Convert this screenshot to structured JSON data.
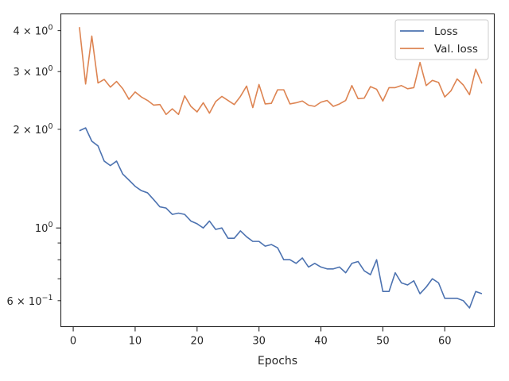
{
  "chart_data": {
    "type": "line",
    "title": "",
    "xlabel": "Epochs",
    "ylabel": "",
    "xlim": [
      -2,
      68
    ],
    "ylim": [
      0.5,
      4.5
    ],
    "yscale": "log",
    "grid": false,
    "legend_position": "top-right",
    "x_ticks": [
      0,
      10,
      20,
      30,
      40,
      50,
      60
    ],
    "x_tick_labels": [
      "0",
      "10",
      "20",
      "30",
      "40",
      "50",
      "60"
    ],
    "y_major_ticks": [
      {
        "value": 1,
        "mantissa": "",
        "base": "10",
        "exp": "0"
      }
    ],
    "y_minor_ticks": [
      {
        "value": 0.6,
        "mantissa": "6 × ",
        "base": "10",
        "exp": "−1"
      },
      {
        "value": 2,
        "mantissa": "2 × ",
        "base": "10",
        "exp": "0"
      },
      {
        "value": 3,
        "mantissa": "3 × ",
        "base": "10",
        "exp": "0"
      },
      {
        "value": 4,
        "mantissa": "4 × ",
        "base": "10",
        "exp": "0"
      }
    ],
    "y_unlabeled_ticks": [
      0.7,
      0.8,
      0.9
    ],
    "x": [
      1,
      2,
      3,
      4,
      5,
      6,
      7,
      8,
      9,
      10,
      11,
      12,
      13,
      14,
      15,
      16,
      17,
      18,
      19,
      20,
      21,
      22,
      23,
      24,
      25,
      26,
      27,
      28,
      29,
      30,
      31,
      32,
      33,
      34,
      35,
      36,
      37,
      38,
      39,
      40,
      41,
      42,
      43,
      44,
      45,
      46,
      47,
      48,
      49,
      50,
      51,
      52,
      53,
      54,
      55,
      56,
      57,
      58,
      59,
      60,
      61,
      62,
      63,
      64,
      65,
      66
    ],
    "series": [
      {
        "name": "Loss",
        "color": "#4c72b0",
        "values": [
          1.98,
          2.02,
          1.84,
          1.78,
          1.6,
          1.55,
          1.6,
          1.46,
          1.4,
          1.34,
          1.3,
          1.28,
          1.22,
          1.16,
          1.15,
          1.1,
          1.11,
          1.1,
          1.05,
          1.03,
          1.0,
          1.05,
          0.99,
          1.0,
          0.93,
          0.93,
          0.98,
          0.94,
          0.91,
          0.91,
          0.88,
          0.89,
          0.87,
          0.8,
          0.8,
          0.78,
          0.81,
          0.76,
          0.78,
          0.76,
          0.75,
          0.75,
          0.76,
          0.73,
          0.78,
          0.79,
          0.74,
          0.72,
          0.8,
          0.64,
          0.64,
          0.73,
          0.68,
          0.67,
          0.69,
          0.63,
          0.66,
          0.7,
          0.68,
          0.61,
          0.61,
          0.61,
          0.6,
          0.57,
          0.64,
          0.63
        ]
      },
      {
        "name": "Val. loss",
        "color": "#dd8452",
        "values": [
          4.1,
          2.75,
          3.85,
          2.77,
          2.84,
          2.69,
          2.8,
          2.66,
          2.47,
          2.6,
          2.51,
          2.45,
          2.37,
          2.38,
          2.22,
          2.31,
          2.22,
          2.53,
          2.35,
          2.26,
          2.41,
          2.24,
          2.43,
          2.52,
          2.45,
          2.38,
          2.52,
          2.71,
          2.33,
          2.74,
          2.39,
          2.4,
          2.64,
          2.64,
          2.39,
          2.41,
          2.44,
          2.37,
          2.35,
          2.42,
          2.45,
          2.35,
          2.39,
          2.45,
          2.72,
          2.48,
          2.49,
          2.7,
          2.65,
          2.44,
          2.68,
          2.68,
          2.72,
          2.66,
          2.68,
          3.2,
          2.72,
          2.82,
          2.78,
          2.51,
          2.62,
          2.85,
          2.73,
          2.55,
          3.05,
          2.76
        ]
      }
    ]
  }
}
